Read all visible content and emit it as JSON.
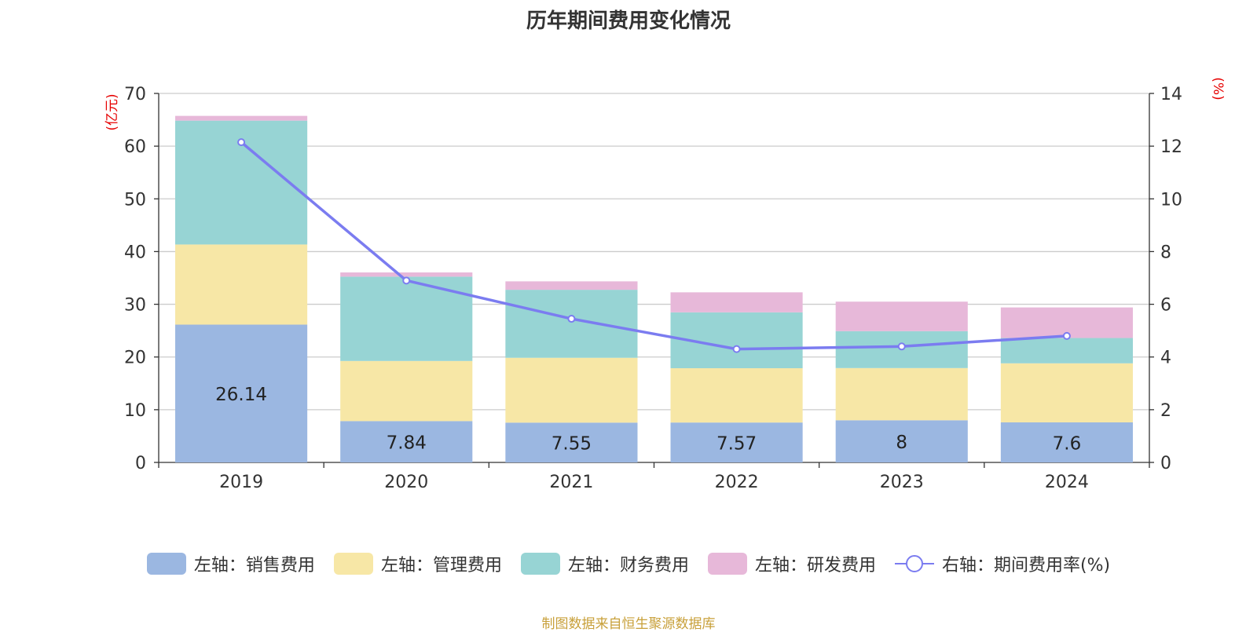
{
  "title": "历年期间费用变化情况",
  "source_note": "制图数据来自恒生聚源数据库",
  "colors": {
    "sales": "#9bb7e1",
    "admin": "#f7e7a6",
    "finance": "#97d4d4",
    "rnd": "#e7b8d9",
    "rate": "#7b7cf0",
    "axis_unit": "#e60000",
    "grid": "#cccccc",
    "text": "#333333"
  },
  "chart_data": {
    "type": "bar",
    "stacked": true,
    "categories": [
      "2019",
      "2020",
      "2021",
      "2022",
      "2023",
      "2024"
    ],
    "y_left": {
      "unit_label": "(亿元)",
      "range": [
        0,
        70
      ],
      "ticks": [
        0,
        10,
        20,
        30,
        40,
        50,
        60,
        70
      ]
    },
    "y_right": {
      "unit_label": "(%)",
      "range": [
        0,
        14
      ],
      "ticks": [
        0,
        2,
        4,
        6,
        8,
        10,
        12,
        14
      ]
    },
    "series": [
      {
        "name": "左轴：销售费用",
        "axis": "left",
        "type": "bar",
        "color_key": "sales",
        "values": [
          26.14,
          7.84,
          7.55,
          7.57,
          8,
          7.6
        ],
        "data_labels": [
          "26.14",
          "7.84",
          "7.55",
          "7.57",
          "8",
          "7.6"
        ]
      },
      {
        "name": "左轴：管理费用",
        "axis": "left",
        "type": "bar",
        "color_key": "admin",
        "values": [
          15.2,
          11.4,
          12.3,
          10.3,
          9.9,
          11.2
        ]
      },
      {
        "name": "左轴：财务费用",
        "axis": "left",
        "type": "bar",
        "color_key": "finance",
        "values": [
          23.5,
          16.0,
          12.9,
          10.6,
          7.0,
          4.8
        ]
      },
      {
        "name": "左轴：研发费用",
        "axis": "left",
        "type": "bar",
        "color_key": "rnd",
        "values": [
          0.9,
          0.8,
          1.6,
          3.8,
          5.6,
          5.8
        ]
      },
      {
        "name": "右轴：期间费用率(%)",
        "axis": "right",
        "type": "line",
        "color_key": "rate",
        "values": [
          12.15,
          6.9,
          5.45,
          4.3,
          4.4,
          4.8
        ]
      }
    ],
    "legend_position": "bottom",
    "grid": true
  }
}
